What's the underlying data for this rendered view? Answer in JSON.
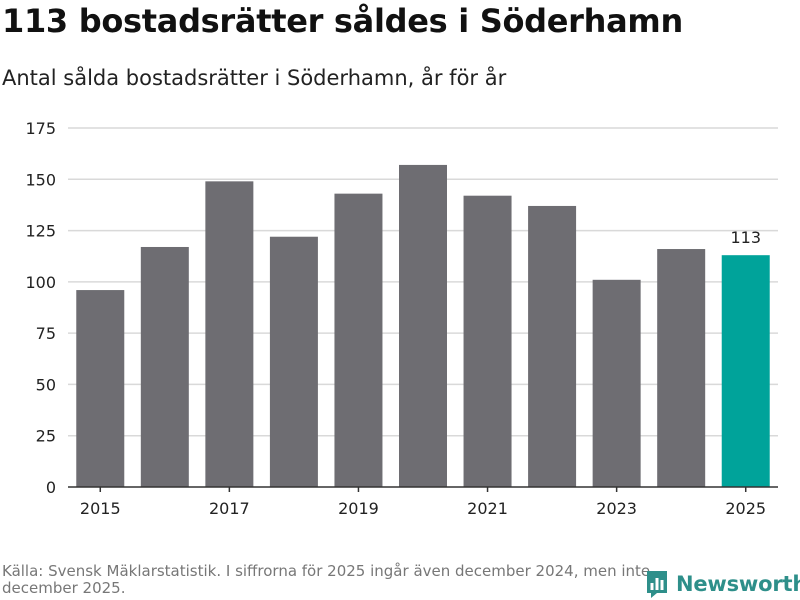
{
  "header": {
    "title": "113 bostadsrätter såldes i Söderhamn",
    "subtitle": "Antal sålda bostadsrätter i Söderhamn, år för år"
  },
  "footer": {
    "source": "Källa: Svensk Mäklarstatistik. I siffrorna för 2025 ingår även december 2024, men inte december 2025.",
    "brand": "Newsworthy"
  },
  "colors": {
    "bar": "#6e6d72",
    "highlight": "#00a39a",
    "grid": "#d9d9d9",
    "axis": "#333333",
    "brand": "#2e8f8a"
  },
  "chart_data": {
    "type": "bar",
    "title": "113 bostadsrätter såldes i Söderhamn",
    "subtitle": "Antal sålda bostadsrätter i Söderhamn, år för år",
    "xlabel": "",
    "ylabel": "",
    "categories": [
      "2015",
      "2016",
      "2017",
      "2018",
      "2019",
      "2020",
      "2021",
      "2022",
      "2023",
      "2024",
      "2025"
    ],
    "values": [
      96,
      117,
      149,
      122,
      143,
      157,
      142,
      137,
      101,
      116,
      113
    ],
    "x_tick_labels": [
      "2015",
      "2017",
      "2019",
      "2021",
      "2023",
      "2025"
    ],
    "y_ticks": [
      0,
      25,
      50,
      75,
      100,
      125,
      150,
      175
    ],
    "ylim": [
      0,
      175
    ],
    "grid": true,
    "highlight_category": "2025",
    "data_labels": [
      {
        "category": "2025",
        "text": "113"
      }
    ]
  }
}
